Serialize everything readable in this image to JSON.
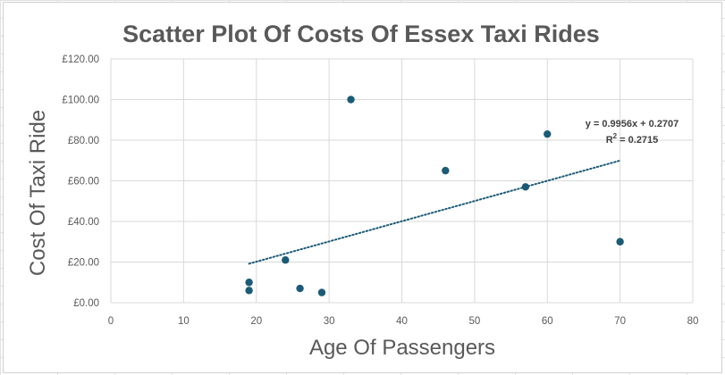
{
  "chart_data": {
    "type": "scatter",
    "title": "Scatter Plot Of Costs Of Essex Taxi Rides",
    "xlabel": "Age Of Passengers",
    "ylabel": "Cost Of Taxi Ride",
    "xlim": [
      0,
      80
    ],
    "ylim": [
      0,
      120
    ],
    "x_ticks": [
      "0",
      "10",
      "20",
      "30",
      "40",
      "50",
      "60",
      "70",
      "80"
    ],
    "y_ticks": [
      "£0.00",
      "£20.00",
      "£40.00",
      "£60.00",
      "£80.00",
      "£100.00",
      "£120.00"
    ],
    "grid": true,
    "point_color": "#1b5b78",
    "series": [
      {
        "x": [
          19,
          19,
          24,
          26,
          29,
          33,
          46,
          57,
          60,
          70
        ],
        "y": [
          10,
          6,
          21,
          7,
          5,
          100,
          65,
          57,
          83,
          30
        ]
      }
    ],
    "trendline": {
      "type": "linear",
      "x_range": [
        19,
        70
      ],
      "slope": 0.9956,
      "intercept": 0.2707,
      "equation": "y = 0.9956x + 0.2707",
      "r2_prefix": "R",
      "r2_sup": "2",
      "r2_value": " = 0.2715"
    }
  }
}
